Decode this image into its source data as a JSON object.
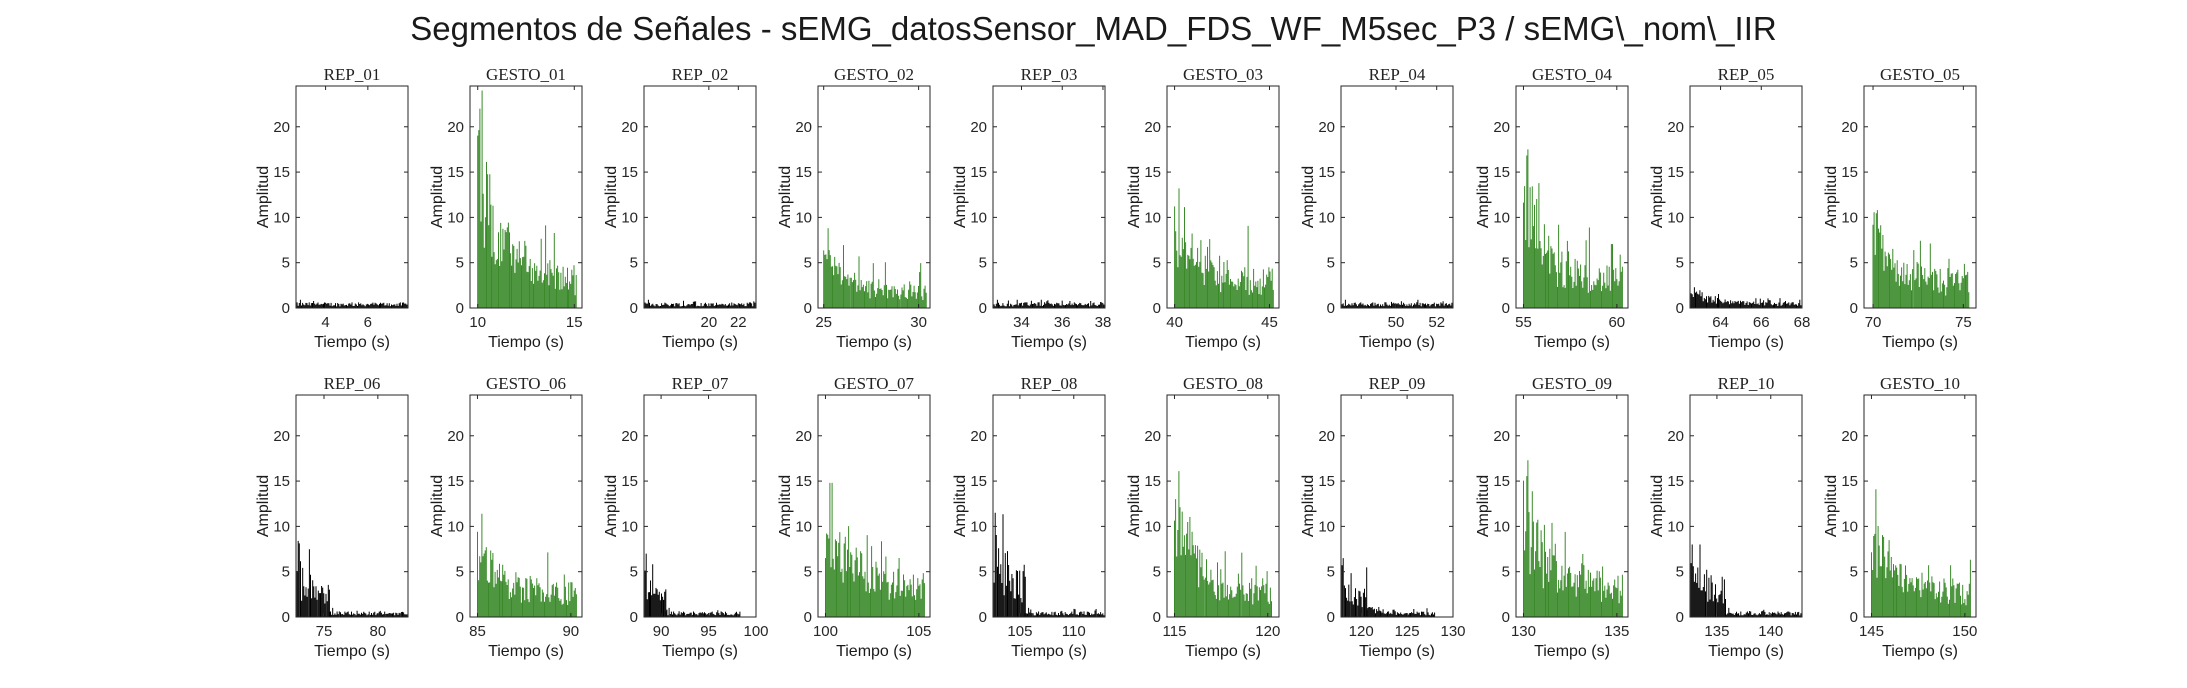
{
  "title": "Segmentos de Señales - sEMG_datosSensor_MAD_FDS_WF_M5sec_P3 / sEMG\\_nom\\_IIR",
  "colors": {
    "rep": "#000000",
    "gesto": "#3a8a2a"
  },
  "chart_data": {
    "type": "bar",
    "shared": {
      "xlabel": "Tiempo (s)",
      "ylabel": "Amplitud",
      "ylim": [
        0,
        24.5
      ],
      "yticks": [
        0,
        5,
        10,
        15,
        20
      ],
      "grid": false
    },
    "panels": [
      {
        "title": "REP_01",
        "kind": "rep",
        "xlim": [
          2.6,
          7.9
        ],
        "xticks": [
          4,
          6
        ],
        "segments": [
          {
            "x0": 2.6,
            "x1": 7.9,
            "base": 0.5,
            "spread": 0.3,
            "max": 0.9
          }
        ]
      },
      {
        "title": "GESTO_01",
        "kind": "gesto",
        "xlim": [
          9.6,
          15.4
        ],
        "xticks": [
          10,
          15
        ],
        "segments": [
          {
            "x0": 10.0,
            "x1": 15.1,
            "base": 3.5,
            "spread": 3.5,
            "max": 24.0
          }
        ]
      },
      {
        "title": "REP_02",
        "kind": "rep",
        "xlim": [
          15.6,
          23.2
        ],
        "xticks": [
          20,
          22
        ],
        "segments": [
          {
            "x0": 15.6,
            "x1": 23.2,
            "base": 0.5,
            "spread": 0.3,
            "max": 0.9
          }
        ]
      },
      {
        "title": "GESTO_02",
        "kind": "gesto",
        "xlim": [
          24.7,
          30.6
        ],
        "xticks": [
          25,
          30
        ],
        "segments": [
          {
            "x0": 25.0,
            "x1": 30.4,
            "base": 2.0,
            "spread": 2.5,
            "max": 8.8
          }
        ]
      },
      {
        "title": "REP_03",
        "kind": "rep",
        "xlim": [
          32.6,
          38.1
        ],
        "xticks": [
          34,
          36,
          38
        ],
        "segments": [
          {
            "x0": 32.6,
            "x1": 38.1,
            "base": 0.5,
            "spread": 0.3,
            "max": 0.9
          }
        ]
      },
      {
        "title": "GESTO_03",
        "kind": "gesto",
        "xlim": [
          39.6,
          45.5
        ],
        "xticks": [
          40,
          45
        ],
        "segments": [
          {
            "x0": 40.0,
            "x1": 45.2,
            "base": 3.5,
            "spread": 3.0,
            "max": 13.2
          }
        ]
      },
      {
        "title": "REP_04",
        "kind": "rep",
        "xlim": [
          47.3,
          52.8
        ],
        "xticks": [
          50,
          52
        ],
        "segments": [
          {
            "x0": 47.3,
            "x1": 52.8,
            "base": 0.5,
            "spread": 0.3,
            "max": 0.9
          }
        ]
      },
      {
        "title": "GESTO_04",
        "kind": "gesto",
        "xlim": [
          54.6,
          60.6
        ],
        "xticks": [
          55,
          60
        ],
        "segments": [
          {
            "x0": 55.0,
            "x1": 60.3,
            "base": 3.5,
            "spread": 3.0,
            "max": 17.5
          }
        ]
      },
      {
        "title": "REP_05",
        "kind": "rep",
        "xlim": [
          62.5,
          68.0
        ],
        "xticks": [
          64,
          66,
          68
        ],
        "segments": [
          {
            "x0": 62.5,
            "x1": 68.0,
            "base": 0.5,
            "spread": 0.3,
            "max": 2.3
          }
        ]
      },
      {
        "title": "GESTO_05",
        "kind": "gesto",
        "xlim": [
          69.5,
          75.7
        ],
        "xticks": [
          70,
          75
        ],
        "segments": [
          {
            "x0": 70.0,
            "x1": 75.3,
            "base": 3.5,
            "spread": 3.0,
            "max": 10.8
          }
        ]
      },
      {
        "title": "REP_06",
        "kind": "rep",
        "xlim": [
          72.4,
          82.8
        ],
        "xticks": [
          75,
          80
        ],
        "segments": [
          {
            "x0": 72.4,
            "x1": 75.5,
            "base": 3.0,
            "spread": 2.5,
            "max": 8.4
          },
          {
            "x0": 75.5,
            "x1": 82.8,
            "base": 0.5,
            "spread": 0.3,
            "max": 1.0
          }
        ]
      },
      {
        "title": "GESTO_06",
        "kind": "gesto",
        "xlim": [
          84.6,
          90.6
        ],
        "xticks": [
          85,
          90
        ],
        "segments": [
          {
            "x0": 85.0,
            "x1": 90.3,
            "base": 3.0,
            "spread": 2.5,
            "max": 11.4
          }
        ]
      },
      {
        "title": "REP_07",
        "kind": "rep",
        "xlim": [
          88.2,
          100.0
        ],
        "xticks": [
          90,
          95,
          100
        ],
        "segments": [
          {
            "x0": 88.2,
            "x1": 90.5,
            "base": 2.5,
            "spread": 1.8,
            "max": 7.0
          },
          {
            "x0": 90.5,
            "x1": 98.3,
            "base": 0.5,
            "spread": 0.3,
            "max": 1.0
          }
        ]
      },
      {
        "title": "GESTO_07",
        "kind": "gesto",
        "xlim": [
          99.6,
          105.6
        ],
        "xticks": [
          100,
          105
        ],
        "segments": [
          {
            "x0": 100.0,
            "x1": 105.3,
            "base": 4.0,
            "spread": 3.5,
            "max": 14.8
          }
        ]
      },
      {
        "title": "REP_08",
        "kind": "rep",
        "xlim": [
          102.5,
          112.9
        ],
        "xticks": [
          105,
          110
        ],
        "segments": [
          {
            "x0": 102.5,
            "x1": 105.5,
            "base": 4.0,
            "spread": 3.5,
            "max": 11.5
          },
          {
            "x0": 105.5,
            "x1": 112.9,
            "base": 0.5,
            "spread": 0.3,
            "max": 1.0
          }
        ]
      },
      {
        "title": "GESTO_08",
        "kind": "gesto",
        "xlim": [
          114.6,
          120.6
        ],
        "xticks": [
          115,
          120
        ],
        "segments": [
          {
            "x0": 115.0,
            "x1": 120.2,
            "base": 3.0,
            "spread": 2.5,
            "max": 16.1
          }
        ]
      },
      {
        "title": "REP_09",
        "kind": "rep",
        "xlim": [
          117.8,
          130.0
        ],
        "xticks": [
          120,
          125,
          130
        ],
        "segments": [
          {
            "x0": 117.8,
            "x1": 120.6,
            "base": 2.5,
            "spread": 2.0,
            "max": 6.5
          },
          {
            "x0": 120.6,
            "x1": 128.0,
            "base": 0.5,
            "spread": 0.3,
            "max": 1.1
          }
        ]
      },
      {
        "title": "GESTO_09",
        "kind": "gesto",
        "xlim": [
          129.6,
          135.6
        ],
        "xticks": [
          130,
          135
        ],
        "segments": [
          {
            "x0": 130.0,
            "x1": 135.3,
            "base": 4.0,
            "spread": 3.0,
            "max": 17.3
          }
        ]
      },
      {
        "title": "REP_10",
        "kind": "rep",
        "xlim": [
          132.5,
          142.9
        ],
        "xticks": [
          135,
          140
        ],
        "segments": [
          {
            "x0": 132.5,
            "x1": 135.8,
            "base": 3.5,
            "spread": 2.5,
            "max": 8.0
          },
          {
            "x0": 135.8,
            "x1": 142.9,
            "base": 0.5,
            "spread": 0.3,
            "max": 1.0
          }
        ]
      },
      {
        "title": "GESTO_10",
        "kind": "gesto",
        "xlim": [
          144.6,
          150.6
        ],
        "xticks": [
          145,
          150
        ],
        "segments": [
          {
            "x0": 145.0,
            "x1": 150.3,
            "base": 3.0,
            "spread": 2.5,
            "max": 14.1
          }
        ]
      }
    ]
  }
}
